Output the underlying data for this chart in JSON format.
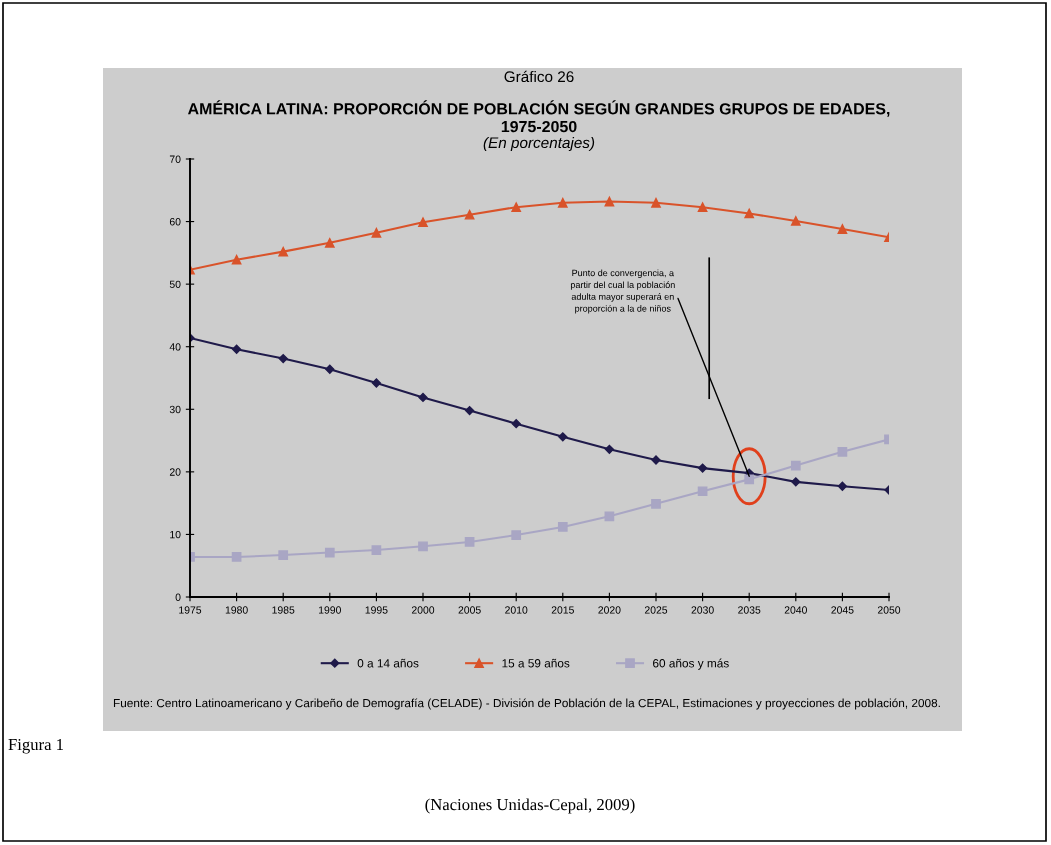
{
  "chart_data": {
    "type": "line",
    "title": "AMÉRICA LATINA: PROPORCIÓN DE POBLACIÓN SEGÚN GRANDES GRUPOS DE EDADES,\n1975-2050",
    "subtitle": "(En porcentajes)",
    "x": [
      1975,
      1980,
      1985,
      1990,
      1995,
      2000,
      2005,
      2010,
      2015,
      2020,
      2025,
      2030,
      2035,
      2040,
      2045,
      2050
    ],
    "series": [
      {
        "name": "0 a 14 años",
        "color": "#1f1a4a",
        "marker": "diamond",
        "values": [
          41.4,
          39.6,
          38.1,
          36.4,
          34.2,
          31.9,
          29.8,
          27.7,
          25.6,
          23.6,
          21.9,
          20.6,
          19.8,
          18.4,
          17.7,
          17.1
        ]
      },
      {
        "name": "15 a 59 años",
        "color": "#d9532a",
        "marker": "triangle",
        "values": [
          52.3,
          53.9,
          55.2,
          56.6,
          58.2,
          59.9,
          61.1,
          62.3,
          63.0,
          63.2,
          63.0,
          62.3,
          61.3,
          60.1,
          58.8,
          57.5
        ]
      },
      {
        "name": "60 años y más",
        "color": "#a9a6c4",
        "marker": "square",
        "values": [
          6.4,
          6.4,
          6.7,
          7.1,
          7.5,
          8.1,
          8.8,
          9.9,
          11.2,
          12.9,
          14.9,
          16.9,
          18.8,
          21.0,
          23.2,
          25.2
        ]
      }
    ],
    "xlim": [
      1975,
      2050
    ],
    "xticks": [
      1975,
      1980,
      1985,
      1990,
      1995,
      2000,
      2005,
      2010,
      2015,
      2020,
      2025,
      2030,
      2035,
      2040,
      2045,
      2050
    ],
    "ylim": [
      0,
      70
    ],
    "yticks": [
      0,
      10,
      20,
      30,
      40,
      50,
      60,
      70
    ],
    "grid": false,
    "legend": "bottom",
    "line_style": "solid",
    "annotations": [
      "Gráfico 26",
      {
        "text": "Punto de convergencia, a\npartir del cual la población\nadulta mayor superará en\nproporción a la de niños",
        "x": 2035,
        "y": 19.3
      },
      "Fuente: Centro Latinoamericano y Caribeño de Demografía (CELADE) - División de Población de la CEPAL, Estimaciones y proyecciones de población, 2008.",
      "Figura 1",
      "(Naciones Unidas-Cepal, 2009)"
    ]
  }
}
